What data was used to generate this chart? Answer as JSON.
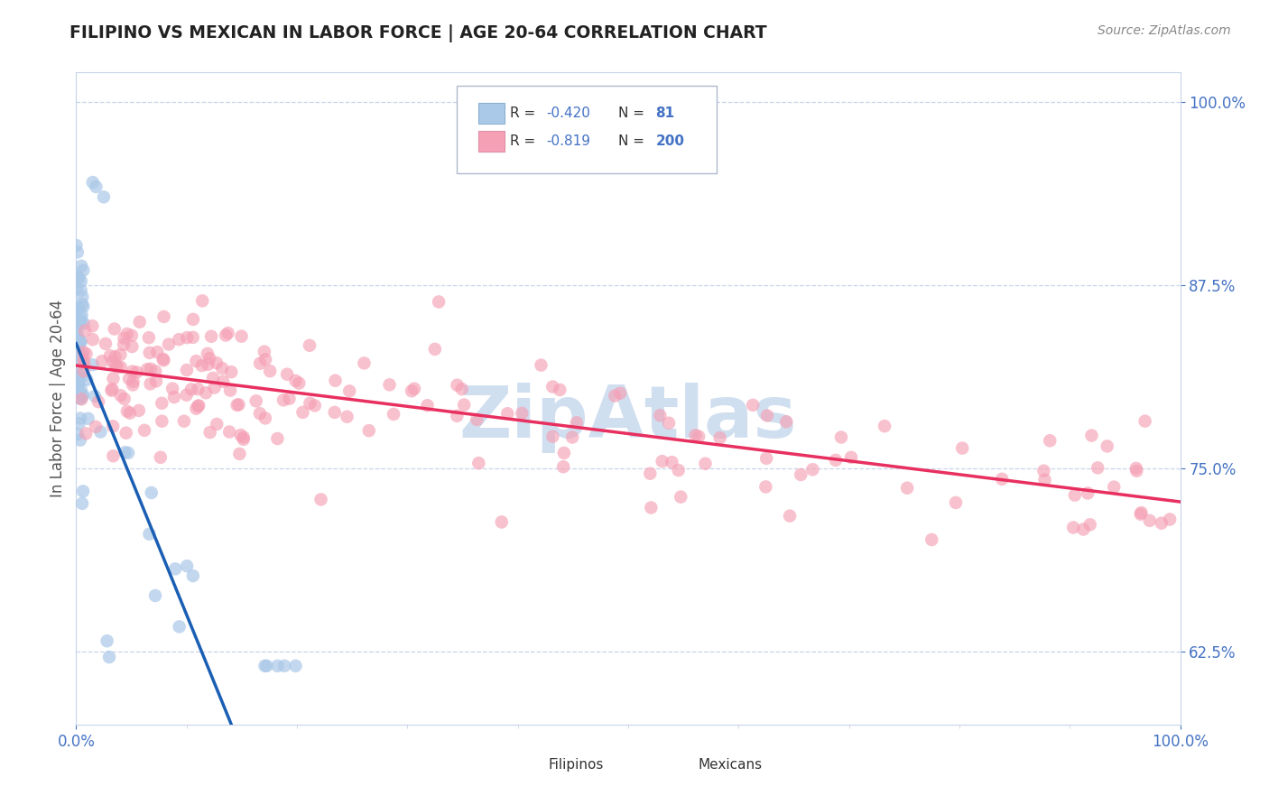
{
  "title": "FILIPINO VS MEXICAN IN LABOR FORCE | AGE 20-64 CORRELATION CHART",
  "source": "Source: ZipAtlas.com",
  "ylabel": "In Labor Force | Age 20-64",
  "xlim": [
    0.0,
    1.0
  ],
  "ylim": [
    0.575,
    1.02
  ],
  "yticks": [
    0.625,
    0.75,
    0.875,
    1.0
  ],
  "ytick_labels": [
    "62.5%",
    "75.0%",
    "87.5%",
    "100.0%"
  ],
  "xtick_left_label": "0.0%",
  "xtick_right_label": "100.0%",
  "legend_r_filipino": "-0.420",
  "legend_n_filipino": "81",
  "legend_r_mexican": "-0.819",
  "legend_n_mexican": "200",
  "filipino_color": "#aac8e8",
  "mexican_color": "#f5a0b5",
  "filipino_line_color": "#1a5fb4",
  "mexican_line_color": "#e83060",
  "dashed_line_color": "#aabcd0",
  "grid_color": "#c8d4e8",
  "background_color": "#ffffff",
  "watermark": "ZipAtlas",
  "watermark_color": "#d0dff0",
  "tick_label_color": "#4472c4",
  "legend_text_color": "#333333",
  "r_value_color": "#4472c4",
  "title_color": "#222222",
  "source_color": "#888888",
  "ylabel_color": "#555555"
}
